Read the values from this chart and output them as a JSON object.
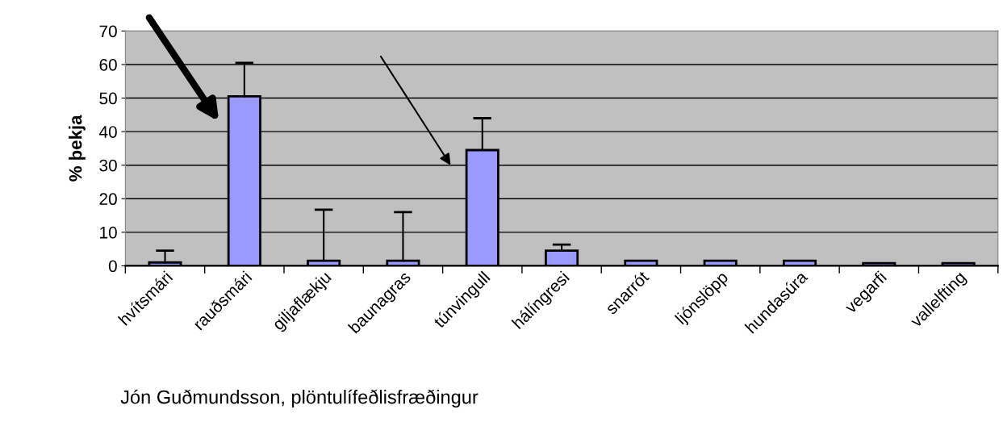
{
  "chart_data": {
    "type": "bar",
    "ylabel": "% þekja",
    "categories": [
      "hvítsmári",
      "rauðsmári",
      "giljaflækju",
      "baunagras",
      "túnvingull",
      "hálíngresi",
      "snarrót",
      "ljónslöpp",
      "hundasúra",
      "vegarfi",
      "vallelfting"
    ],
    "series": [
      {
        "color": "#9999ff",
        "values": [
          1,
          50.5,
          1.5,
          1.5,
          34.5,
          4.5,
          1.5,
          1.5,
          1.5,
          0.8,
          0.8
        ],
        "errors": [
          [
            1,
            4.5
          ],
          [
            50.5,
            60.5
          ],
          [
            1.5,
            16.7
          ],
          [
            1.5,
            16
          ],
          [
            34.5,
            44
          ],
          [
            4.5,
            6.3
          ],
          null,
          null,
          null,
          null,
          null
        ]
      }
    ],
    "ylim": [
      0,
      70
    ],
    "yticks": [
      0,
      10,
      20,
      30,
      40,
      50,
      60,
      70
    ],
    "grid": "y",
    "annotations": [
      "Jón Guðmundsson, plöntulífeðlisfræðingur"
    ]
  }
}
